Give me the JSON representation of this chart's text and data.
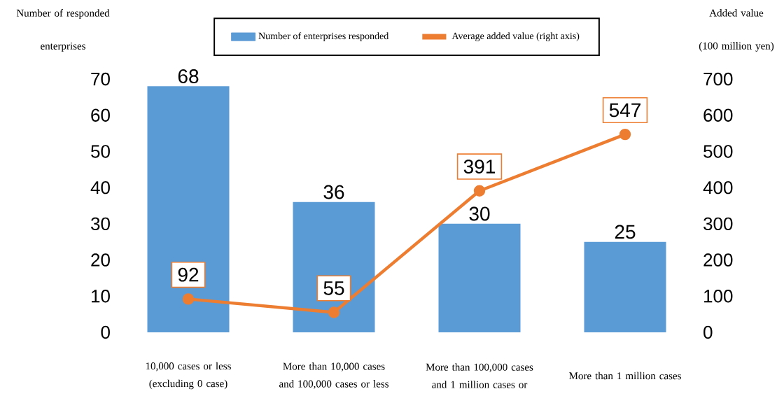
{
  "chart_data": {
    "type": "bar",
    "categories": [
      "10,000 cases or less (excluding 0 case)",
      "More than 10,000 cases and 100,000 cases or less",
      "More than 100,000 cases and 1 million cases or",
      "More than 1 million cases"
    ],
    "series": [
      {
        "name": "Number of enterprises responded",
        "color": "#5b9bd5",
        "values": [
          68,
          36,
          30,
          25
        ]
      },
      {
        "name": "Average added value (right axis)",
        "type": "line",
        "axis": "y2",
        "color": "#ed7d31",
        "values": [
          92,
          55,
          391,
          547
        ]
      }
    ],
    "ylabel": "Number of responded enterprises",
    "y2label": "Added value (100 million yen)",
    "ylim": [
      0,
      70
    ],
    "yticks": [
      0,
      10,
      20,
      30,
      40,
      50,
      60,
      70
    ],
    "y2lim": [
      0,
      700
    ],
    "y2ticks": [
      0,
      100,
      200,
      300,
      400,
      500,
      600,
      700
    ],
    "legend": "top",
    "data_labels": true,
    "marker": "circle",
    "line_style": "solid"
  }
}
